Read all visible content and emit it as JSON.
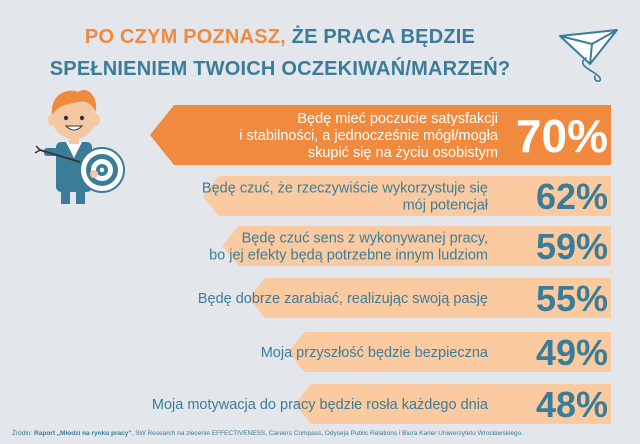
{
  "title": {
    "line1_part1": "PO CZYM POZNASZ, ",
    "line1_part2": "ŻE PRACA BĘDZIE",
    "line2": "SPEŁNIENIEM TWOICH OCZEKIWAŃ/MARZEŃ?"
  },
  "colors": {
    "orange": "#f08a3e",
    "light_orange": "#fbcaa0",
    "blue": "#3b7d99",
    "background": "#e3e6eb"
  },
  "chart_data": {
    "type": "bar",
    "categories": [
      [
        "Będę mieć poczucie satysfakcji",
        "i stabilności, a jednocześnie mógł/mogła",
        "skupić się na życiu osobistym"
      ],
      [
        "Będę czuć, że rzeczywiście wykorzystuje się",
        "mój potencjał"
      ],
      [
        "Będę czuć sens z wykonywanej pracy,",
        "bo jej efekty będą potrzebne innym ludziom"
      ],
      [
        "Będę dobrze zarabiać, realizując swoją pasję"
      ],
      [
        "Moja przyszłość będzie bezpieczna"
      ],
      [
        "Moja motywacja do pracy będzie rosła każdego dnia"
      ]
    ],
    "values": [
      70,
      62,
      59,
      55,
      49,
      48
    ],
    "value_labels": [
      "70%",
      "62%",
      "59%",
      "55%",
      "49%",
      "48%"
    ],
    "highlight_index": 0
  },
  "source": {
    "prefix": "Źródło: ",
    "report": "Raport „Młodzi na rynku pracy”",
    "rest": ", SW Research na zlecenie EFFECTIVENESS, Careers Compass, Odyseja Public Relations i Biura Karier Uniwersytetu Wrocławskiego."
  },
  "illustration": {
    "figure": "person-holding-target-icon",
    "plane": "paper-plane-icon"
  }
}
